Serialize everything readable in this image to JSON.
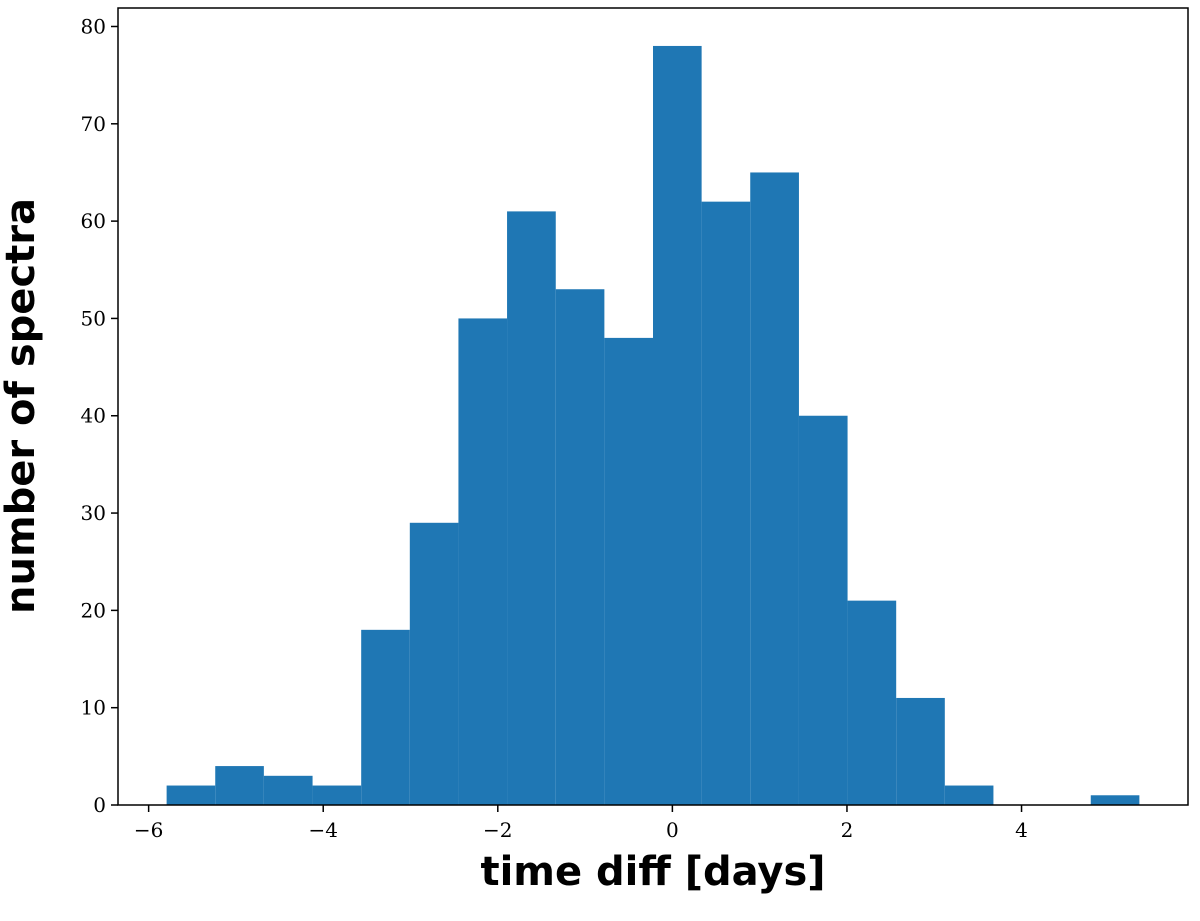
{
  "chart_data": {
    "type": "histogram",
    "xlabel": "time diff [days]",
    "ylabel": "number of spectra",
    "bins": [
      -5.794,
      -5.237,
      -4.68,
      -4.122,
      -3.565,
      -3.008,
      -2.451,
      -1.894,
      -1.336,
      -0.779,
      -0.222,
      0.335,
      0.892,
      1.45,
      2.007,
      2.564,
      3.121,
      3.678,
      4.236,
      4.793,
      5.35
    ],
    "counts": [
      2,
      4,
      3,
      2,
      18,
      29,
      50,
      61,
      53,
      48,
      78,
      62,
      65,
      40,
      21,
      11,
      2,
      0,
      0,
      1
    ],
    "color": "#1f77b4",
    "xlim": [
      -6.351,
      5.907
    ],
    "xticks": [
      {
        "value": -6,
        "label": "−6"
      },
      {
        "value": -4,
        "label": "−4"
      },
      {
        "value": -2,
        "label": "−2"
      },
      0,
      2,
      4
    ],
    "ylim": [
      0,
      81.9
    ],
    "yticks": [
      0,
      10,
      20,
      30,
      40,
      50,
      60,
      70,
      80
    ]
  }
}
